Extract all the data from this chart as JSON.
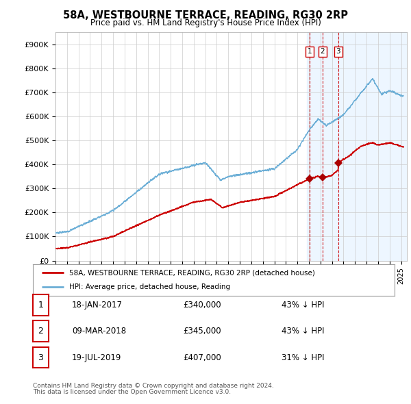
{
  "title": "58A, WESTBOURNE TERRACE, READING, RG30 2RP",
  "subtitle": "Price paid vs. HM Land Registry's House Price Index (HPI)",
  "legend_line1": "58A, WESTBOURNE TERRACE, READING, RG30 2RP (detached house)",
  "legend_line2": "HPI: Average price, detached house, Reading",
  "footer1": "Contains HM Land Registry data © Crown copyright and database right 2024.",
  "footer2": "This data is licensed under the Open Government Licence v3.0.",
  "transactions": [
    {
      "label": "1",
      "date": "18-JAN-2017",
      "price": "£340,000",
      "hpi": "43% ↓ HPI"
    },
    {
      "label": "2",
      "date": "09-MAR-2018",
      "price": "£345,000",
      "hpi": "43% ↓ HPI"
    },
    {
      "label": "3",
      "date": "19-JUL-2019",
      "price": "£407,000",
      "hpi": "31% ↓ HPI"
    }
  ],
  "transaction_dates_num": [
    2017.05,
    2018.18,
    2019.54
  ],
  "transaction_prices": [
    340000,
    345000,
    407000
  ],
  "hpi_color": "#6baed6",
  "price_color": "#cc0000",
  "marker_color": "#aa0000",
  "vline_color": "#cc0000",
  "shade_color": "#ddeeff",
  "background_color": "#ffffff",
  "grid_color": "#cccccc",
  "ylim": [
    0,
    950000
  ],
  "xlim_start": 1995.0,
  "xlim_end": 2025.5,
  "yticks": [
    0,
    100000,
    200000,
    300000,
    400000,
    500000,
    600000,
    700000,
    800000,
    900000
  ],
  "ytick_labels": [
    "£0",
    "£100K",
    "£200K",
    "£300K",
    "£400K",
    "£500K",
    "£600K",
    "£700K",
    "£800K",
    "£900K"
  ],
  "shade_start": 2016.8,
  "shade_end": 2025.5
}
